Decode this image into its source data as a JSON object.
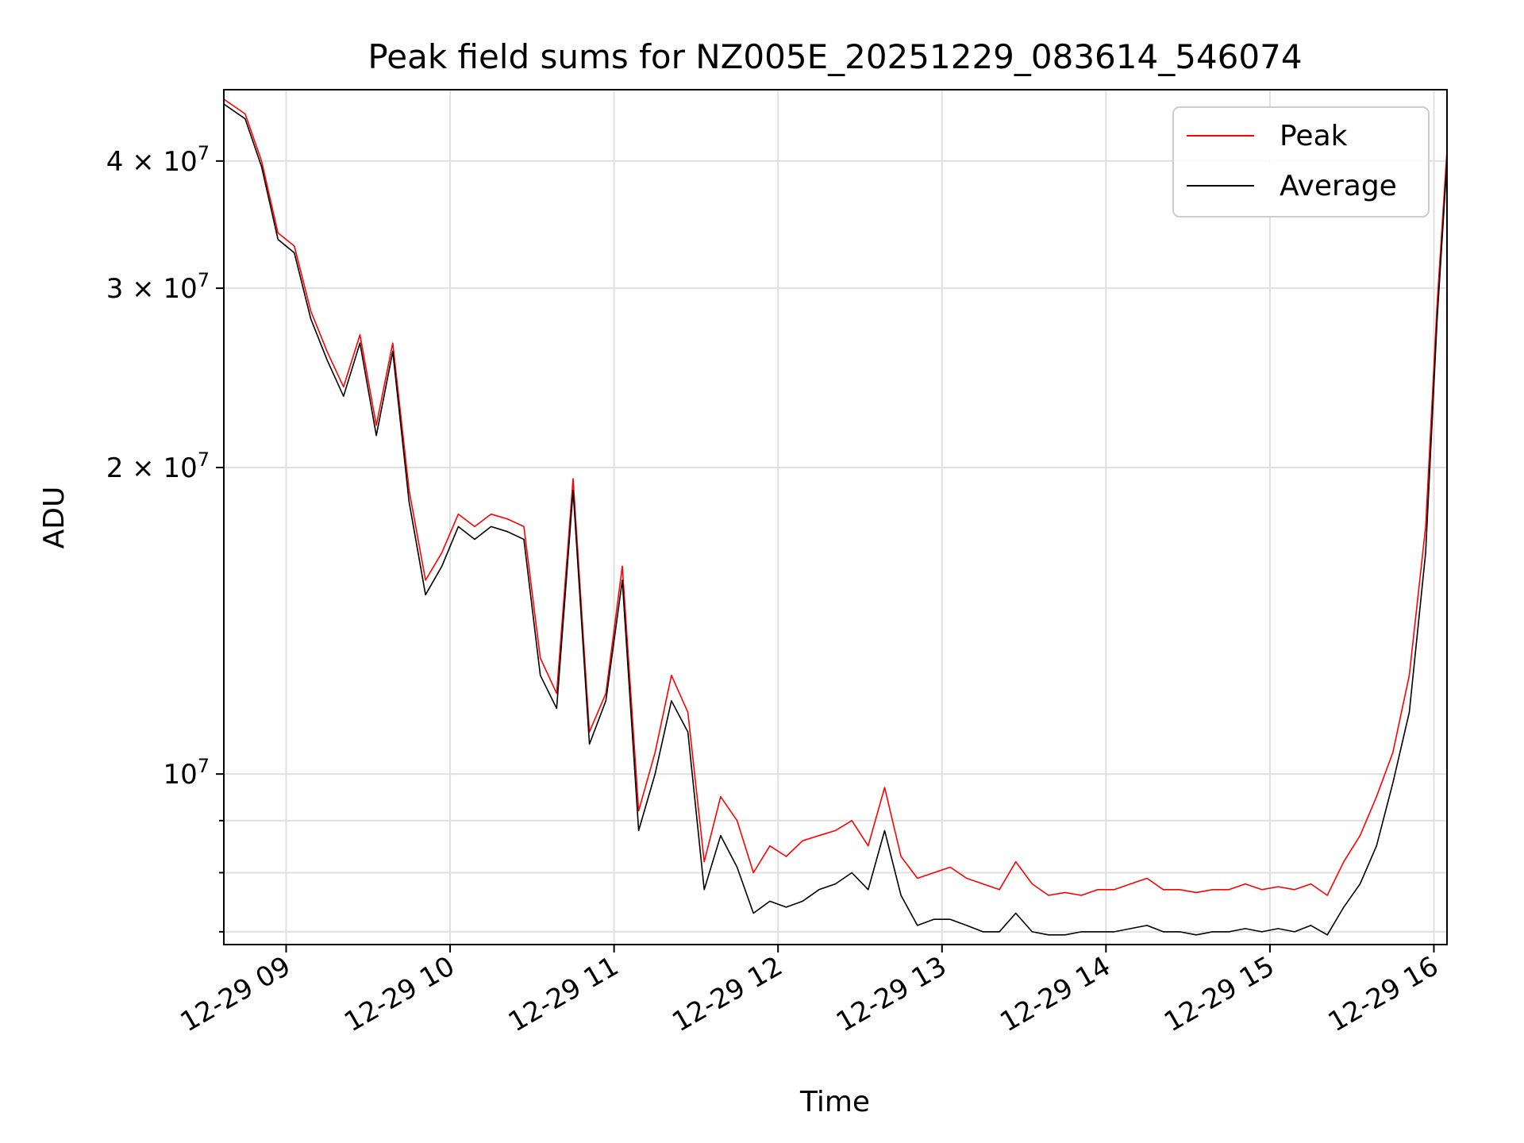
{
  "chart_data": {
    "type": "line",
    "title": "Peak field sums for NZ005E_20251229_083614_546074",
    "xlabel": "Time",
    "ylabel": "ADU",
    "yscale": "log",
    "ylim": [
      6800000,
      47000000
    ],
    "xlim_hours": [
      8.62,
      16.08
    ],
    "grid": true,
    "legend_position": "top-right",
    "x_tick_labels": [
      "12-29 09",
      "12-29 10",
      "12-29 11",
      "12-29 12",
      "12-29 13",
      "12-29 14",
      "12-29 15",
      "12-29 16"
    ],
    "x_tick_hours": [
      9,
      10,
      11,
      12,
      13,
      14,
      15,
      16
    ],
    "y_major_ticks": [
      {
        "value": 10000000,
        "base": "10",
        "exp": "7"
      },
      {
        "value": 20000000,
        "base": "2 × 10",
        "exp": "7"
      },
      {
        "value": 30000000,
        "base": "3 × 10",
        "exp": "7"
      },
      {
        "value": 40000000,
        "base": "4 × 10",
        "exp": "7"
      }
    ],
    "y_minor_ticks": [
      7000000,
      8000000,
      9000000
    ],
    "x_hours": [
      8.62,
      8.75,
      8.85,
      8.95,
      9.05,
      9.15,
      9.25,
      9.35,
      9.45,
      9.55,
      9.65,
      9.75,
      9.85,
      9.95,
      10.05,
      10.15,
      10.25,
      10.35,
      10.45,
      10.55,
      10.65,
      10.75,
      10.85,
      10.95,
      11.05,
      11.15,
      11.25,
      11.35,
      11.45,
      11.55,
      11.65,
      11.75,
      11.85,
      11.95,
      12.05,
      12.15,
      12.25,
      12.35,
      12.45,
      12.55,
      12.65,
      12.75,
      12.85,
      12.95,
      13.05,
      13.15,
      13.25,
      13.35,
      13.45,
      13.55,
      13.65,
      13.75,
      13.85,
      13.95,
      14.05,
      14.15,
      14.25,
      14.35,
      14.45,
      14.55,
      14.65,
      14.75,
      14.85,
      14.95,
      15.05,
      15.15,
      15.25,
      15.35,
      15.45,
      15.55,
      15.65,
      15.75,
      15.85,
      15.95,
      16.02,
      16.08
    ],
    "series": [
      {
        "name": "Peak",
        "color": "#ff0000",
        "values": [
          46000000,
          44500000,
          40000000,
          34000000,
          33000000,
          28500000,
          26000000,
          24000000,
          27000000,
          22000000,
          26500000,
          19000000,
          15500000,
          16500000,
          18000000,
          17500000,
          18000000,
          17800000,
          17500000,
          13000000,
          12000000,
          19500000,
          11000000,
          12000000,
          16000000,
          9200000,
          10500000,
          12500000,
          11500000,
          8200000,
          9500000,
          9000000,
          8000000,
          8500000,
          8300000,
          8600000,
          8700000,
          8800000,
          9000000,
          8500000,
          9700000,
          8300000,
          7900000,
          8000000,
          8100000,
          7900000,
          7800000,
          7700000,
          8200000,
          7800000,
          7600000,
          7650000,
          7600000,
          7700000,
          7700000,
          7800000,
          7900000,
          7700000,
          7700000,
          7650000,
          7700000,
          7700000,
          7800000,
          7700000,
          7750000,
          7700000,
          7800000,
          7600000,
          8200000,
          8700000,
          9500000,
          10500000,
          12500000,
          17500000,
          29000000,
          41000000
        ]
      },
      {
        "name": "Average",
        "color": "#000000",
        "values": [
          45500000,
          44000000,
          39500000,
          33500000,
          32500000,
          28000000,
          25500000,
          23500000,
          26500000,
          21500000,
          26000000,
          18500000,
          15000000,
          16000000,
          17500000,
          17000000,
          17500000,
          17300000,
          17000000,
          12500000,
          11600000,
          19000000,
          10700000,
          11800000,
          15500000,
          8800000,
          10000000,
          11800000,
          11000000,
          7700000,
          8700000,
          8100000,
          7300000,
          7500000,
          7400000,
          7500000,
          7700000,
          7800000,
          8000000,
          7700000,
          8800000,
          7600000,
          7100000,
          7200000,
          7200000,
          7100000,
          7000000,
          7000000,
          7300000,
          7000000,
          6950000,
          6950000,
          7000000,
          7000000,
          7000000,
          7050000,
          7100000,
          7000000,
          7000000,
          6950000,
          7000000,
          7000000,
          7050000,
          7000000,
          7050000,
          7000000,
          7100000,
          6950000,
          7400000,
          7800000,
          8500000,
          9800000,
          11500000,
          16500000,
          28000000,
          40000000
        ]
      }
    ]
  }
}
